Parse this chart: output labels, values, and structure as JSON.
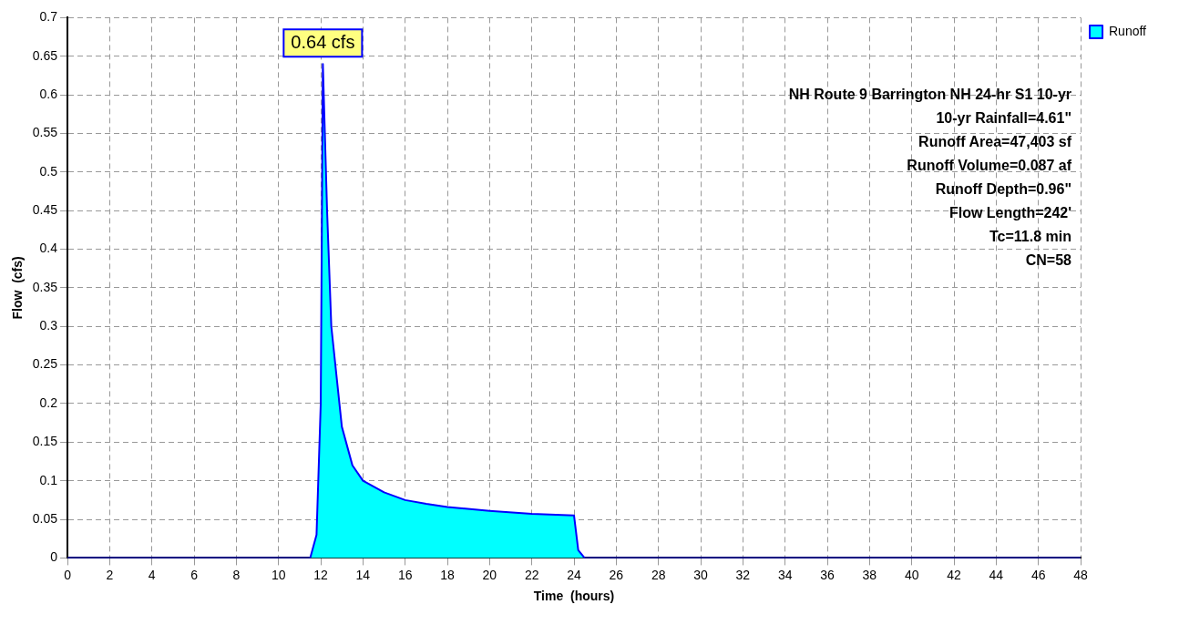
{
  "chart_data": {
    "type": "area",
    "xlabel": "Time  (hours)",
    "ylabel": "Flow  (cfs)",
    "xlim": [
      0,
      48
    ],
    "xticks": [
      0,
      2,
      4,
      6,
      8,
      10,
      12,
      14,
      16,
      18,
      20,
      22,
      24,
      26,
      28,
      30,
      32,
      34,
      36,
      38,
      40,
      42,
      44,
      46,
      48
    ],
    "ylim": [
      0,
      0.7
    ],
    "yticks": [
      0,
      0.05,
      0.1,
      0.15,
      0.2,
      0.25,
      0.3,
      0.35,
      0.4,
      0.45,
      0.5,
      0.55,
      0.6,
      0.65,
      0.7
    ],
    "grid": true,
    "legend": "top right",
    "line_style": "solid",
    "series": [
      {
        "name": "Runoff",
        "color": "#00ffff",
        "x": [
          0,
          11.5,
          11.8,
          12.0,
          12.1,
          12.3,
          12.5,
          13,
          13.5,
          14,
          15,
          16,
          17,
          18,
          20,
          22,
          24,
          24.2,
          24.5,
          48
        ],
        "values": [
          0,
          0,
          0.03,
          0.2,
          0.64,
          0.45,
          0.3,
          0.17,
          0.12,
          0.1,
          0.085,
          0.075,
          0.07,
          0.066,
          0.061,
          0.057,
          0.055,
          0.01,
          0,
          0
        ]
      }
    ],
    "annotations": [
      {
        "text": "0.64 cfs",
        "x": 12.1,
        "y": 0.64
      },
      "NH Route 9 Barrington NH 24-hr S1 10-yr",
      "10-yr Rainfall=4.61\"",
      "Runoff Area=47,403 sf",
      "Runoff Volume=0.087 af",
      "Runoff Depth=0.96\"",
      "Flow Length=242'",
      "Tc=11.8 min",
      "CN=58"
    ]
  }
}
